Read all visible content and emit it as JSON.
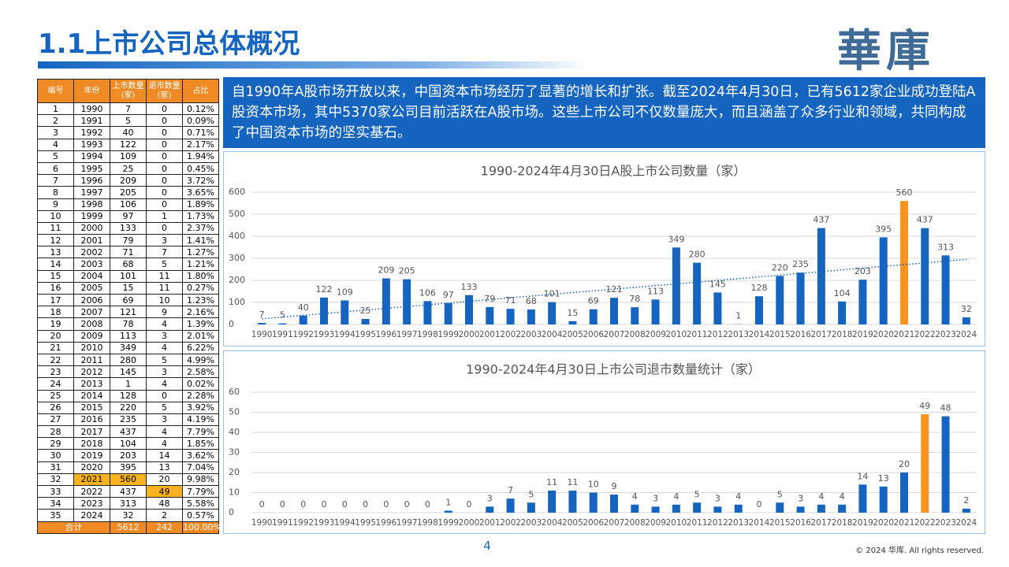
{
  "header": {
    "title": "1.1上市公司总体概况",
    "logo": "華庫"
  },
  "table": {
    "columns": [
      "编号",
      "年份",
      "上市数量\n(家)",
      "退市数量\n(家)",
      "占比"
    ],
    "rows": [
      [
        "1",
        "1990",
        "7",
        "0",
        "0.12%"
      ],
      [
        "2",
        "1991",
        "5",
        "0",
        "0.09%"
      ],
      [
        "3",
        "1992",
        "40",
        "0",
        "0.71%"
      ],
      [
        "4",
        "1993",
        "122",
        "0",
        "2.17%"
      ],
      [
        "5",
        "1994",
        "109",
        "0",
        "1.94%"
      ],
      [
        "6",
        "1995",
        "25",
        "0",
        "0.45%"
      ],
      [
        "7",
        "1996",
        "209",
        "0",
        "3.72%"
      ],
      [
        "8",
        "1997",
        "205",
        "0",
        "3.65%"
      ],
      [
        "9",
        "1998",
        "106",
        "0",
        "1.89%"
      ],
      [
        "10",
        "1999",
        "97",
        "1",
        "1.73%"
      ],
      [
        "11",
        "2000",
        "133",
        "0",
        "2.37%"
      ],
      [
        "12",
        "2001",
        "79",
        "3",
        "1.41%"
      ],
      [
        "13",
        "2002",
        "71",
        "7",
        "1.27%"
      ],
      [
        "14",
        "2003",
        "68",
        "5",
        "1.21%"
      ],
      [
        "15",
        "2004",
        "101",
        "11",
        "1.80%"
      ],
      [
        "16",
        "2005",
        "15",
        "11",
        "0.27%"
      ],
      [
        "17",
        "2006",
        "69",
        "10",
        "1.23%"
      ],
      [
        "18",
        "2007",
        "121",
        "9",
        "2.16%"
      ],
      [
        "19",
        "2008",
        "78",
        "4",
        "1.39%"
      ],
      [
        "20",
        "2009",
        "113",
        "3",
        "2.01%"
      ],
      [
        "21",
        "2010",
        "349",
        "4",
        "6.22%"
      ],
      [
        "22",
        "2011",
        "280",
        "5",
        "4.99%"
      ],
      [
        "23",
        "2012",
        "145",
        "3",
        "2.58%"
      ],
      [
        "24",
        "2013",
        "1",
        "4",
        "0.02%"
      ],
      [
        "25",
        "2014",
        "128",
        "0",
        "2.28%"
      ],
      [
        "26",
        "2015",
        "220",
        "5",
        "3.92%"
      ],
      [
        "27",
        "2016",
        "235",
        "3",
        "4.19%"
      ],
      [
        "28",
        "2017",
        "437",
        "4",
        "7.79%"
      ],
      [
        "29",
        "2018",
        "104",
        "4",
        "1.85%"
      ],
      [
        "30",
        "2019",
        "203",
        "14",
        "3.62%"
      ],
      [
        "31",
        "2020",
        "395",
        "13",
        "7.04%"
      ],
      [
        "32",
        "2021",
        "560",
        "20",
        "9.98%"
      ],
      [
        "33",
        "2022",
        "437",
        "49",
        "7.79%"
      ],
      [
        "34",
        "2023",
        "313",
        "48",
        "5.58%"
      ],
      [
        "35",
        "2024",
        "32",
        "2",
        "0.57%"
      ]
    ],
    "total": [
      "合计",
      "5612",
      "242",
      "100.00%"
    ]
  },
  "intro": "自1990年A股市场开放以来，中国资本市场经历了显著的增长和扩张。截至2024年4月30日，已有5612家企业成功登陆A股资本市场，其中5370家公司目前活跃在A股市场。这些上市公司不仅数量庞大，而且涵盖了众多行业和领域，共同构成了中国资本市场的坚实基石。",
  "chart_data": [
    {
      "type": "bar",
      "title": "1990-2024年4月30日A股上市公司数量（家）",
      "categories": [
        "1990",
        "1991",
        "1992",
        "1993",
        "1994",
        "1995",
        "1996",
        "1997",
        "1998",
        "1999",
        "2000",
        "2001",
        "2002",
        "2003",
        "2004",
        "2005",
        "2006",
        "2007",
        "2008",
        "2009",
        "2010",
        "2011",
        "2012",
        "2013",
        "2014",
        "2015",
        "2016",
        "2017",
        "2018",
        "2019",
        "2020",
        "2021",
        "2022",
        "2023",
        "2024"
      ],
      "values": [
        7,
        5,
        40,
        122,
        109,
        25,
        209,
        205,
        106,
        97,
        133,
        79,
        71,
        68,
        101,
        15,
        69,
        121,
        78,
        113,
        349,
        280,
        145,
        1,
        128,
        220,
        235,
        437,
        104,
        203,
        395,
        560,
        437,
        313,
        32
      ],
      "colors": [
        "#1565c0",
        "#1565c0",
        "#1565c0",
        "#1565c0",
        "#1565c0",
        "#1565c0",
        "#1565c0",
        "#1565c0",
        "#1565c0",
        "#1565c0",
        "#1565c0",
        "#1565c0",
        "#1565c0",
        "#1565c0",
        "#1565c0",
        "#1565c0",
        "#1565c0",
        "#1565c0",
        "#1565c0",
        "#1565c0",
        "#1565c0",
        "#1565c0",
        "#1565c0",
        "#1565c0",
        "#1565c0",
        "#1565c0",
        "#1565c0",
        "#1565c0",
        "#1565c0",
        "#1565c0",
        "#1565c0",
        "#f7931e",
        "#1565c0",
        "#1565c0",
        "#1565c0"
      ],
      "ylim": [
        0,
        600
      ],
      "yticks": [
        0,
        100,
        200,
        300,
        400,
        500,
        600
      ],
      "grid": true,
      "trendline": true
    },
    {
      "type": "bar",
      "title": "1990-2024年4月30日上市公司退市数量统计（家）",
      "categories": [
        "1990",
        "1991",
        "1992",
        "1993",
        "1994",
        "1995",
        "1996",
        "1997",
        "1998",
        "1999",
        "2000",
        "2001",
        "2002",
        "2003",
        "2004",
        "2005",
        "2006",
        "2007",
        "2008",
        "2009",
        "2010",
        "2011",
        "2012",
        "2013",
        "2014",
        "2015",
        "2016",
        "2017",
        "2018",
        "2019",
        "2020",
        "2021",
        "2022",
        "2023",
        "2024"
      ],
      "values": [
        0,
        0,
        0,
        0,
        0,
        0,
        0,
        0,
        0,
        1,
        0,
        3,
        7,
        5,
        11,
        11,
        10,
        9,
        4,
        3,
        4,
        5,
        3,
        4,
        0,
        5,
        3,
        4,
        4,
        14,
        13,
        20,
        49,
        48,
        2
      ],
      "colors": [
        "#1565c0",
        "#1565c0",
        "#1565c0",
        "#1565c0",
        "#1565c0",
        "#1565c0",
        "#1565c0",
        "#1565c0",
        "#1565c0",
        "#1565c0",
        "#1565c0",
        "#1565c0",
        "#1565c0",
        "#1565c0",
        "#1565c0",
        "#1565c0",
        "#1565c0",
        "#1565c0",
        "#1565c0",
        "#1565c0",
        "#1565c0",
        "#1565c0",
        "#1565c0",
        "#1565c0",
        "#1565c0",
        "#1565c0",
        "#1565c0",
        "#1565c0",
        "#1565c0",
        "#1565c0",
        "#1565c0",
        "#1565c0",
        "#f7931e",
        "#1565c0",
        "#1565c0"
      ],
      "ylim": [
        0,
        60
      ],
      "yticks": [
        0,
        10,
        20,
        30,
        40,
        50,
        60
      ],
      "grid": true,
      "trendline": false
    }
  ],
  "footer": {
    "page": "4",
    "copyright": "© 2024 华库. All rights reserved."
  }
}
